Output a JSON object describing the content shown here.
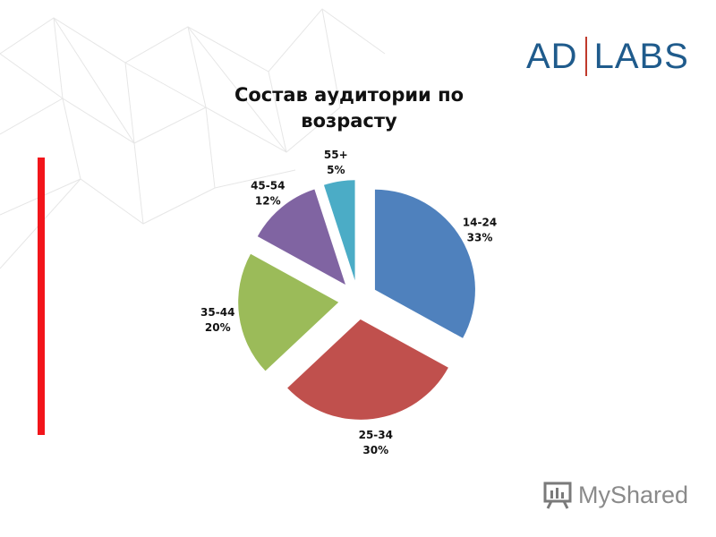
{
  "logo": {
    "left": "AD",
    "right": "LABS"
  },
  "watermark": {
    "text": "MyShared"
  },
  "chart_data": {
    "type": "pie",
    "title": "Состав аудитории по возрасту",
    "categories": [
      "14-24",
      "25-34",
      "35-44",
      "45-54",
      "55+"
    ],
    "values": [
      33,
      30,
      20,
      12,
      5
    ],
    "value_labels": [
      "33%",
      "30%",
      "20%",
      "12%",
      "5%"
    ],
    "colors": [
      "#4f81bd",
      "#c0504d",
      "#9bbb59",
      "#8064a2",
      "#4bacc6"
    ],
    "exploded": true,
    "legend": "none"
  }
}
